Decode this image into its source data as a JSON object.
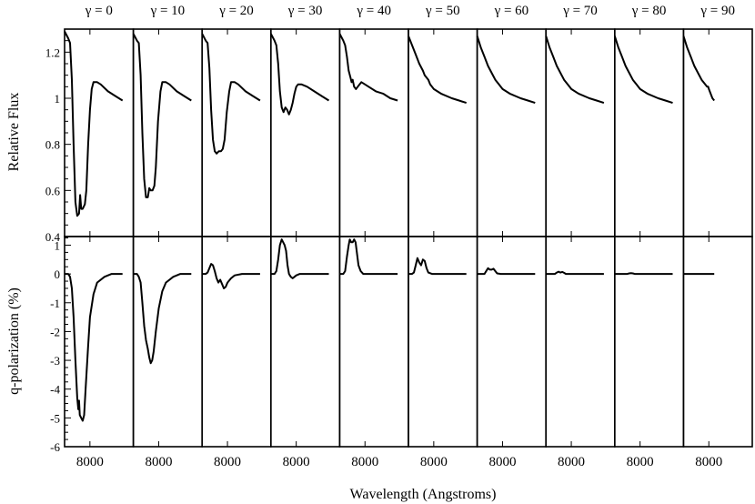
{
  "chart_data": {
    "type": "line",
    "title": "",
    "xlabel": "Wavelength (Angstroms)",
    "panel_titles": [
      "γ = 0",
      "γ = 10",
      "γ = 20",
      "γ = 30",
      "γ = 40",
      "γ = 50",
      "γ = 60",
      "γ = 70",
      "γ = 80",
      "γ = 90"
    ],
    "x_tick_label": "8000",
    "xlim": [
      7300,
      9200
    ],
    "rows": [
      {
        "ylabel": "Relative Flux",
        "ylim": [
          0.4,
          1.3
        ],
        "yticks": [
          "0.4",
          "0.6",
          "0.8",
          "1",
          "1.2"
        ],
        "ytick_values": [
          0.4,
          0.6,
          0.8,
          1.0,
          1.2
        ]
      },
      {
        "ylabel": "q-polarization (%)",
        "ylim": [
          -6,
          1.3
        ],
        "yticks": [
          "-6",
          "-5",
          "-4",
          "-3",
          "-2",
          "-1",
          "0",
          "1"
        ],
        "ytick_values": [
          -6,
          -5,
          -4,
          -3,
          -2,
          -1,
          0,
          1
        ]
      }
    ],
    "panels": [
      {
        "gamma": 0,
        "flux": [
          [
            7300,
            1.29
          ],
          [
            7400,
            1.26
          ],
          [
            7450,
            1.24
          ],
          [
            7500,
            1.08
          ],
          [
            7550,
            0.8
          ],
          [
            7600,
            0.55
          ],
          [
            7650,
            0.49
          ],
          [
            7700,
            0.5
          ],
          [
            7730,
            0.58
          ],
          [
            7760,
            0.52
          ],
          [
            7800,
            0.52
          ],
          [
            7860,
            0.54
          ],
          [
            7900,
            0.6
          ],
          [
            7950,
            0.8
          ],
          [
            8000,
            0.95
          ],
          [
            8050,
            1.04
          ],
          [
            8100,
            1.07
          ],
          [
            8200,
            1.07
          ],
          [
            8300,
            1.06
          ],
          [
            8500,
            1.03
          ],
          [
            8700,
            1.01
          ],
          [
            8900,
            0.99
          ]
        ],
        "pol": [
          [
            7300,
            0.0
          ],
          [
            7400,
            0.0
          ],
          [
            7450,
            -0.1
          ],
          [
            7500,
            -0.5
          ],
          [
            7550,
            -1.5
          ],
          [
            7600,
            -3.0
          ],
          [
            7650,
            -4.3
          ],
          [
            7680,
            -4.7
          ],
          [
            7700,
            -4.4
          ],
          [
            7720,
            -4.9
          ],
          [
            7760,
            -5.0
          ],
          [
            7800,
            -5.1
          ],
          [
            7840,
            -4.9
          ],
          [
            7880,
            -4.0
          ],
          [
            7950,
            -2.5
          ],
          [
            8000,
            -1.5
          ],
          [
            8100,
            -0.7
          ],
          [
            8200,
            -0.3
          ],
          [
            8400,
            -0.1
          ],
          [
            8600,
            0.0
          ],
          [
            8900,
            0.0
          ]
        ]
      },
      {
        "gamma": 10,
        "flux": [
          [
            7300,
            1.28
          ],
          [
            7400,
            1.25
          ],
          [
            7450,
            1.24
          ],
          [
            7500,
            1.1
          ],
          [
            7550,
            0.85
          ],
          [
            7600,
            0.65
          ],
          [
            7650,
            0.57
          ],
          [
            7700,
            0.57
          ],
          [
            7740,
            0.61
          ],
          [
            7780,
            0.6
          ],
          [
            7830,
            0.6
          ],
          [
            7880,
            0.62
          ],
          [
            7920,
            0.7
          ],
          [
            7980,
            0.9
          ],
          [
            8050,
            1.03
          ],
          [
            8100,
            1.07
          ],
          [
            8200,
            1.07
          ],
          [
            8300,
            1.06
          ],
          [
            8500,
            1.03
          ],
          [
            8700,
            1.01
          ],
          [
            8900,
            0.99
          ]
        ],
        "pol": [
          [
            7300,
            0.0
          ],
          [
            7400,
            0.0
          ],
          [
            7450,
            -0.1
          ],
          [
            7500,
            -0.3
          ],
          [
            7550,
            -1.0
          ],
          [
            7600,
            -1.8
          ],
          [
            7650,
            -2.3
          ],
          [
            7700,
            -2.6
          ],
          [
            7740,
            -2.9
          ],
          [
            7780,
            -3.1
          ],
          [
            7820,
            -3.0
          ],
          [
            7860,
            -2.7
          ],
          [
            7920,
            -2.0
          ],
          [
            8000,
            -1.2
          ],
          [
            8100,
            -0.6
          ],
          [
            8200,
            -0.3
          ],
          [
            8400,
            -0.1
          ],
          [
            8600,
            0.0
          ],
          [
            8900,
            0.0
          ]
        ]
      },
      {
        "gamma": 20,
        "flux": [
          [
            7300,
            1.28
          ],
          [
            7400,
            1.25
          ],
          [
            7450,
            1.24
          ],
          [
            7500,
            1.13
          ],
          [
            7550,
            0.95
          ],
          [
            7600,
            0.82
          ],
          [
            7650,
            0.77
          ],
          [
            7700,
            0.76
          ],
          [
            7760,
            0.77
          ],
          [
            7820,
            0.77
          ],
          [
            7870,
            0.78
          ],
          [
            7920,
            0.82
          ],
          [
            7980,
            0.94
          ],
          [
            8050,
            1.03
          ],
          [
            8100,
            1.07
          ],
          [
            8200,
            1.07
          ],
          [
            8300,
            1.06
          ],
          [
            8500,
            1.03
          ],
          [
            8700,
            1.01
          ],
          [
            8900,
            0.99
          ]
        ],
        "pol": [
          [
            7300,
            0.0
          ],
          [
            7400,
            0.0
          ],
          [
            7450,
            0.05
          ],
          [
            7500,
            0.2
          ],
          [
            7550,
            0.35
          ],
          [
            7600,
            0.3
          ],
          [
            7650,
            0.1
          ],
          [
            7700,
            -0.15
          ],
          [
            7750,
            -0.3
          ],
          [
            7800,
            -0.2
          ],
          [
            7850,
            -0.35
          ],
          [
            7900,
            -0.5
          ],
          [
            7950,
            -0.45
          ],
          [
            8000,
            -0.3
          ],
          [
            8100,
            -0.15
          ],
          [
            8200,
            -0.05
          ],
          [
            8400,
            0.0
          ],
          [
            8900,
            0.0
          ]
        ]
      },
      {
        "gamma": 30,
        "flux": [
          [
            7300,
            1.28
          ],
          [
            7400,
            1.25
          ],
          [
            7450,
            1.23
          ],
          [
            7500,
            1.15
          ],
          [
            7550,
            1.03
          ],
          [
            7600,
            0.96
          ],
          [
            7650,
            0.94
          ],
          [
            7700,
            0.96
          ],
          [
            7750,
            0.95
          ],
          [
            7800,
            0.93
          ],
          [
            7850,
            0.95
          ],
          [
            7900,
            0.98
          ],
          [
            7950,
            1.02
          ],
          [
            8000,
            1.05
          ],
          [
            8050,
            1.06
          ],
          [
            8150,
            1.06
          ],
          [
            8300,
            1.05
          ],
          [
            8500,
            1.03
          ],
          [
            8700,
            1.01
          ],
          [
            8900,
            0.99
          ]
        ],
        "pol": [
          [
            7300,
            0.0
          ],
          [
            7400,
            0.0
          ],
          [
            7450,
            0.1
          ],
          [
            7500,
            0.5
          ],
          [
            7550,
            1.0
          ],
          [
            7600,
            1.2
          ],
          [
            7640,
            1.1
          ],
          [
            7680,
            1.0
          ],
          [
            7720,
            0.8
          ],
          [
            7760,
            0.3
          ],
          [
            7800,
            0.0
          ],
          [
            7850,
            -0.1
          ],
          [
            7900,
            -0.15
          ],
          [
            7950,
            -0.1
          ],
          [
            8000,
            -0.05
          ],
          [
            8100,
            0.0
          ],
          [
            8900,
            0.0
          ]
        ]
      },
      {
        "gamma": 40,
        "flux": [
          [
            7300,
            1.28
          ],
          [
            7400,
            1.25
          ],
          [
            7450,
            1.23
          ],
          [
            7500,
            1.18
          ],
          [
            7550,
            1.12
          ],
          [
            7600,
            1.09
          ],
          [
            7630,
            1.07
          ],
          [
            7660,
            1.08
          ],
          [
            7700,
            1.05
          ],
          [
            7750,
            1.04
          ],
          [
            7800,
            1.05
          ],
          [
            7850,
            1.06
          ],
          [
            7900,
            1.07
          ],
          [
            8000,
            1.06
          ],
          [
            8100,
            1.05
          ],
          [
            8300,
            1.03
          ],
          [
            8500,
            1.02
          ],
          [
            8700,
            1.0
          ],
          [
            8900,
            0.99
          ]
        ],
        "pol": [
          [
            7300,
            0.0
          ],
          [
            7400,
            0.0
          ],
          [
            7450,
            0.1
          ],
          [
            7500,
            0.6
          ],
          [
            7550,
            1.0
          ],
          [
            7580,
            1.2
          ],
          [
            7620,
            1.1
          ],
          [
            7660,
            1.1
          ],
          [
            7700,
            1.2
          ],
          [
            7740,
            1.1
          ],
          [
            7780,
            0.7
          ],
          [
            7820,
            0.3
          ],
          [
            7880,
            0.1
          ],
          [
            7950,
            0.0
          ],
          [
            8100,
            0.0
          ],
          [
            8900,
            0.0
          ]
        ]
      },
      {
        "gamma": 50,
        "flux": [
          [
            7300,
            1.27
          ],
          [
            7400,
            1.23
          ],
          [
            7500,
            1.19
          ],
          [
            7600,
            1.15
          ],
          [
            7700,
            1.12
          ],
          [
            7750,
            1.1
          ],
          [
            7800,
            1.09
          ],
          [
            7850,
            1.08
          ],
          [
            7900,
            1.06
          ],
          [
            8000,
            1.04
          ],
          [
            8200,
            1.02
          ],
          [
            8500,
            1.0
          ],
          [
            8700,
            0.99
          ],
          [
            8900,
            0.98
          ]
        ],
        "pol": [
          [
            7300,
            0.0
          ],
          [
            7400,
            0.0
          ],
          [
            7450,
            0.05
          ],
          [
            7500,
            0.3
          ],
          [
            7550,
            0.55
          ],
          [
            7600,
            0.4
          ],
          [
            7650,
            0.3
          ],
          [
            7700,
            0.5
          ],
          [
            7750,
            0.45
          ],
          [
            7800,
            0.2
          ],
          [
            7850,
            0.05
          ],
          [
            7950,
            0.0
          ],
          [
            8900,
            0.0
          ]
        ]
      },
      {
        "gamma": 60,
        "flux": [
          [
            7300,
            1.27
          ],
          [
            7400,
            1.22
          ],
          [
            7500,
            1.18
          ],
          [
            7600,
            1.14
          ],
          [
            7700,
            1.11
          ],
          [
            7800,
            1.08
          ],
          [
            7900,
            1.06
          ],
          [
            8000,
            1.04
          ],
          [
            8200,
            1.02
          ],
          [
            8500,
            1.0
          ],
          [
            8700,
            0.99
          ],
          [
            8900,
            0.98
          ]
        ],
        "pol": [
          [
            7300,
            0.0
          ],
          [
            7500,
            0.0
          ],
          [
            7550,
            0.1
          ],
          [
            7600,
            0.2
          ],
          [
            7650,
            0.15
          ],
          [
            7700,
            0.15
          ],
          [
            7750,
            0.18
          ],
          [
            7800,
            0.1
          ],
          [
            7850,
            0.02
          ],
          [
            7950,
            0.0
          ],
          [
            8900,
            0.0
          ]
        ]
      },
      {
        "gamma": 70,
        "flux": [
          [
            7300,
            1.27
          ],
          [
            7400,
            1.22
          ],
          [
            7500,
            1.18
          ],
          [
            7600,
            1.14
          ],
          [
            7700,
            1.11
          ],
          [
            7800,
            1.08
          ],
          [
            7900,
            1.06
          ],
          [
            8000,
            1.04
          ],
          [
            8200,
            1.02
          ],
          [
            8500,
            1.0
          ],
          [
            8700,
            0.99
          ],
          [
            8900,
            0.98
          ]
        ],
        "pol": [
          [
            7300,
            0.0
          ],
          [
            7550,
            0.0
          ],
          [
            7600,
            0.05
          ],
          [
            7650,
            0.08
          ],
          [
            7700,
            0.05
          ],
          [
            7750,
            0.07
          ],
          [
            7800,
            0.04
          ],
          [
            7850,
            0.0
          ],
          [
            8900,
            0.0
          ]
        ]
      },
      {
        "gamma": 80,
        "flux": [
          [
            7300,
            1.27
          ],
          [
            7400,
            1.22
          ],
          [
            7500,
            1.18
          ],
          [
            7600,
            1.14
          ],
          [
            7700,
            1.11
          ],
          [
            7800,
            1.08
          ],
          [
            7900,
            1.06
          ],
          [
            8000,
            1.04
          ],
          [
            8200,
            1.02
          ],
          [
            8500,
            1.0
          ],
          [
            8700,
            0.99
          ],
          [
            8900,
            0.98
          ]
        ],
        "pol": [
          [
            7300,
            0.0
          ],
          [
            7650,
            0.0
          ],
          [
            7700,
            0.02
          ],
          [
            7750,
            0.03
          ],
          [
            7800,
            0.02
          ],
          [
            7850,
            0.0
          ],
          [
            8900,
            0.0
          ]
        ]
      },
      {
        "gamma": 90,
        "flux": [
          [
            7300,
            1.27
          ],
          [
            7400,
            1.22
          ],
          [
            7500,
            1.18
          ],
          [
            7600,
            1.14
          ],
          [
            7700,
            1.11
          ],
          [
            7800,
            1.08
          ],
          [
            7900,
            1.06
          ],
          [
            7950,
            1.05
          ],
          [
            7980,
            1.05
          ],
          [
            8000,
            1.04
          ],
          [
            8050,
            1.02
          ],
          [
            8100,
            1.0
          ],
          [
            8150,
            0.99
          ]
        ],
        "pol": [
          [
            7300,
            0.0
          ],
          [
            8150,
            0.0
          ]
        ]
      }
    ]
  }
}
